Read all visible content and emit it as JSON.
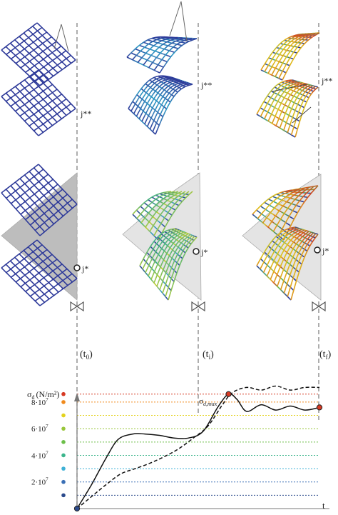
{
  "labels": {
    "node_upper": "j**",
    "node_lower": "j*",
    "time_0": "(t",
    "time_0_sub": "0",
    "time_i": "(t",
    "time_i_sub": "i",
    "time_f": "(t",
    "time_f_sub": "f",
    "close_paren": ")",
    "sigma_max": "σ",
    "sigma_max_sub": "d,max",
    "x_axis": "t"
  },
  "chart_data": {
    "type": "line",
    "title": "",
    "ylabel": "σd (N/m²)",
    "ylabel_sub": "d",
    "ylabel_units": "(N/m²)",
    "xlabel": "t",
    "y_ticks": [
      {
        "label": "8·10",
        "exp": "7"
      },
      {
        "label": "6·10",
        "exp": "7"
      },
      {
        "label": "4·10",
        "exp": "7"
      },
      {
        "label": "2·10",
        "exp": "7"
      }
    ],
    "y_tick_values": [
      8,
      6,
      4,
      2
    ],
    "ylim": [
      0,
      8.8
    ],
    "xlim": [
      0,
      1
    ],
    "levels": [
      {
        "value": 1,
        "color": "#2b4a8c"
      },
      {
        "value": 2,
        "color": "#3a6fb5"
      },
      {
        "value": 3,
        "color": "#3fb1d6"
      },
      {
        "value": 4,
        "color": "#3cb58c"
      },
      {
        "value": 5,
        "color": "#6cbf4a"
      },
      {
        "value": 6,
        "color": "#98c63a"
      },
      {
        "value": 7,
        "color": "#e3d21c"
      },
      {
        "value": 8,
        "color": "#f08a1c"
      },
      {
        "value": 8.6,
        "color": "#d63a24"
      }
    ],
    "series": [
      {
        "style": "solid",
        "x": [
          0,
          0.06,
          0.12,
          0.17,
          0.23,
          0.28,
          0.34,
          0.4,
          0.46,
          0.52,
          0.58,
          0.625,
          0.66,
          0.7,
          0.76,
          0.82,
          0.88,
          0.94,
          1.0
        ],
        "y": [
          0,
          1.8,
          3.8,
          5.2,
          5.6,
          5.6,
          5.5,
          5.3,
          5.3,
          5.8,
          7.6,
          8.6,
          8.2,
          7.3,
          7.8,
          7.4,
          7.7,
          7.4,
          7.6
        ]
      },
      {
        "style": "dashed",
        "x": [
          0,
          0.06,
          0.12,
          0.18,
          0.24,
          0.3,
          0.36,
          0.42,
          0.48,
          0.54,
          0.6,
          0.64,
          0.7,
          0.76,
          0.82,
          0.88,
          0.94,
          1.0
        ],
        "y": [
          0,
          0.9,
          1.8,
          2.6,
          3.0,
          3.4,
          3.9,
          4.5,
          5.3,
          6.2,
          7.8,
          8.7,
          9.1,
          8.9,
          9.2,
          8.9,
          9.1,
          9.1
        ]
      }
    ],
    "markers": [
      {
        "x": 0,
        "y": 0,
        "color": "#2b4a8c"
      },
      {
        "x": 0.625,
        "y": 8.6,
        "color": "#d63a24"
      },
      {
        "x": 1.0,
        "y": 7.6,
        "color": "#d63a24"
      }
    ]
  },
  "colors": {
    "grid_blue": "#2f3b9a",
    "grey_sheet": "#b9b9b9",
    "dashed_line": "#666666"
  }
}
